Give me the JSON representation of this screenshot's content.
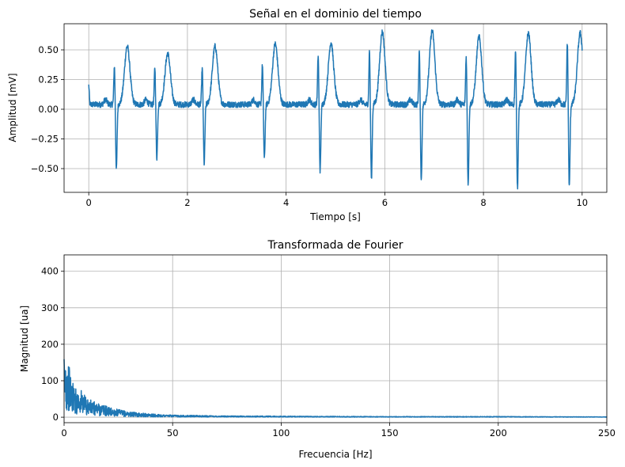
{
  "chart_data": [
    {
      "type": "line",
      "title": "Señal en el dominio del tiempo",
      "xlabel": "Tiempo [s]",
      "ylabel": "Amplitud [mV]",
      "xlim": [
        -0.5,
        10.5
      ],
      "ylim": [
        -0.7,
        0.72
      ],
      "grid": true,
      "xticks": [
        0,
        2,
        4,
        6,
        8,
        10
      ],
      "xtick_labels": [
        "0",
        "2",
        "4",
        "6",
        "8",
        "10"
      ],
      "yticks": [
        0.5,
        0.25,
        0.0,
        -0.25,
        -0.5
      ],
      "ytick_labels": [
        "0.50",
        "0.25",
        "0.00",
        "−0.25",
        "−0.50"
      ],
      "series": [
        {
          "color": "#1f77b4",
          "baseline": 0.04,
          "beats": [
            {
              "t": 0.0,
              "r": 0.2,
              "s": 0.08,
              "tw": 0.1
            },
            {
              "t": 0.52,
              "r": 0.37,
              "s": -0.51,
              "tw": 0.53
            },
            {
              "t": 1.34,
              "r": 0.36,
              "s": -0.41,
              "tw": 0.47
            },
            {
              "t": 2.3,
              "r": 0.35,
              "s": -0.46,
              "tw": 0.53
            },
            {
              "t": 3.52,
              "r": 0.38,
              "s": -0.42,
              "tw": 0.55
            },
            {
              "t": 4.65,
              "r": 0.46,
              "s": -0.52,
              "tw": 0.56
            },
            {
              "t": 5.69,
              "r": 0.5,
              "s": -0.59,
              "tw": 0.65
            },
            {
              "t": 6.7,
              "r": 0.5,
              "s": -0.6,
              "tw": 0.66
            },
            {
              "t": 7.65,
              "r": 0.45,
              "s": -0.63,
              "tw": 0.61
            },
            {
              "t": 8.65,
              "r": 0.5,
              "s": -0.66,
              "tw": 0.64
            },
            {
              "t": 9.7,
              "r": 0.57,
              "s": -0.66,
              "tw": 0.64
            }
          ]
        }
      ]
    },
    {
      "type": "line",
      "title": "Transformada de Fourier",
      "xlabel": "Frecuencia [Hz]",
      "ylabel": "Magnitud [ua]",
      "xlim": [
        0,
        250
      ],
      "ylim": [
        -15,
        445
      ],
      "grid": true,
      "xticks": [
        0,
        50,
        100,
        150,
        200,
        250
      ],
      "xtick_labels": [
        "0",
        "50",
        "100",
        "150",
        "200",
        "250"
      ],
      "yticks": [
        0,
        100,
        200,
        300,
        400
      ],
      "ytick_labels": [
        "0",
        "100",
        "200",
        "300",
        "400"
      ],
      "series": [
        {
          "color": "#1f77b4",
          "envelope": [
            [
              0,
              170
            ],
            [
              1,
              165
            ],
            [
              2,
              150
            ],
            [
              3,
              120
            ],
            [
              5,
              80
            ],
            [
              8,
              75
            ],
            [
              10,
              55
            ],
            [
              13,
              45
            ],
            [
              18,
              35
            ],
            [
              22,
              25
            ],
            [
              30,
              15
            ],
            [
              40,
              9
            ],
            [
              50,
              6
            ],
            [
              70,
              4
            ],
            [
              100,
              3
            ],
            [
              150,
              2
            ],
            [
              200,
              2
            ],
            [
              250,
              1
            ]
          ]
        }
      ]
    }
  ]
}
